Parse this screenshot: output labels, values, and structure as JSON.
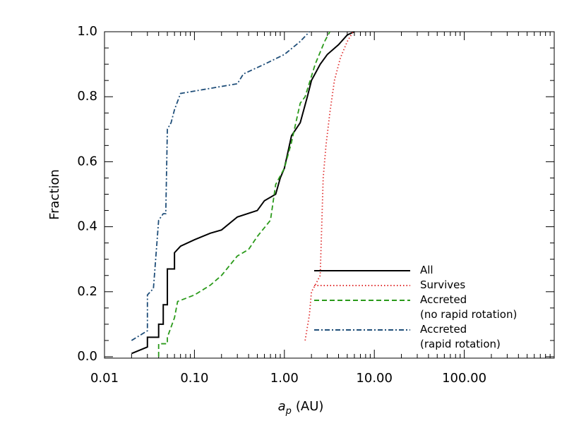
{
  "chart_data": {
    "type": "line",
    "xlabel": {
      "symbol": "a",
      "subscript": "p",
      "unit": "(AU)"
    },
    "ylabel": "Fraction",
    "xscale": "log",
    "xlim": [
      0.01,
      1000
    ],
    "ylim": [
      0,
      1
    ],
    "xticks": [
      {
        "value": 0.01,
        "label": "0.01"
      },
      {
        "value": 0.1,
        "label": "0.10"
      },
      {
        "value": 1,
        "label": "1.00"
      },
      {
        "value": 10,
        "label": "10.00"
      },
      {
        "value": 100,
        "label": "100.00"
      }
    ],
    "yticks": [
      {
        "value": 0,
        "label": "0.0"
      },
      {
        "value": 0.2,
        "label": "0.2"
      },
      {
        "value": 0.4,
        "label": "0.4"
      },
      {
        "value": 0.6,
        "label": "0.6"
      },
      {
        "value": 0.8,
        "label": "0.8"
      },
      {
        "value": 1,
        "label": "1.0"
      }
    ],
    "legend": "lower right",
    "series": [
      {
        "name": "All",
        "color": "#000000",
        "dash": "solid",
        "x": [
          0.02,
          0.02,
          0.03,
          0.03,
          0.04,
          0.04,
          0.045,
          0.045,
          0.05,
          0.05,
          0.06,
          0.06,
          0.07,
          0.1,
          0.15,
          0.2,
          0.3,
          0.5,
          0.6,
          0.8,
          0.9,
          1.0,
          1.2,
          1.5,
          1.8,
          2.0,
          2.5,
          3.0,
          4.0,
          5.0,
          6.0
        ],
        "values": [
          0.01,
          0.01,
          0.03,
          0.06,
          0.06,
          0.1,
          0.1,
          0.16,
          0.16,
          0.27,
          0.27,
          0.32,
          0.34,
          0.36,
          0.38,
          0.39,
          0.43,
          0.45,
          0.48,
          0.5,
          0.55,
          0.58,
          0.68,
          0.72,
          0.8,
          0.85,
          0.9,
          0.93,
          0.96,
          0.99,
          1.0
        ]
      },
      {
        "name": "Survives",
        "color": "#e03030",
        "dash": "dotted",
        "x": [
          1.7,
          1.9,
          2.0,
          2.2,
          2.5,
          2.6,
          2.7,
          2.9,
          3.2,
          3.6,
          4.2,
          5.0,
          5.8
        ],
        "values": [
          0.05,
          0.13,
          0.2,
          0.22,
          0.25,
          0.4,
          0.55,
          0.65,
          0.75,
          0.85,
          0.92,
          0.97,
          1.0
        ]
      },
      {
        "name": "Accreted\n(no rapid rotation)",
        "color": "#2a9a1a",
        "dash": "dashed",
        "x": [
          0.04,
          0.04,
          0.05,
          0.05,
          0.06,
          0.065,
          0.1,
          0.15,
          0.2,
          0.3,
          0.4,
          0.5,
          0.7,
          0.8,
          1.0,
          1.2,
          1.5,
          1.7,
          2.2,
          2.8,
          3.2
        ],
        "values": [
          0.0,
          0.04,
          0.04,
          0.06,
          0.12,
          0.17,
          0.19,
          0.22,
          0.25,
          0.31,
          0.33,
          0.37,
          0.42,
          0.53,
          0.58,
          0.66,
          0.78,
          0.8,
          0.9,
          0.97,
          1.0
        ]
      },
      {
        "name": "Accreted\n(rapid rotation)",
        "color": "#1f4e79",
        "dash": "dashdot",
        "x": [
          0.02,
          0.03,
          0.03,
          0.035,
          0.04,
          0.045,
          0.048,
          0.05,
          0.055,
          0.06,
          0.07,
          0.3,
          0.35,
          0.6,
          1.0,
          1.5,
          1.9
        ],
        "values": [
          0.05,
          0.08,
          0.19,
          0.21,
          0.42,
          0.44,
          0.44,
          0.7,
          0.72,
          0.76,
          0.81,
          0.84,
          0.87,
          0.9,
          0.93,
          0.97,
          1.0
        ]
      }
    ]
  }
}
